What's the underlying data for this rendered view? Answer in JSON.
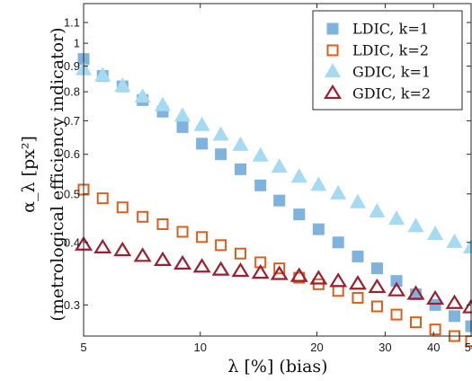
{
  "chart_data": {
    "type": "scatter",
    "x_scale": "log",
    "y_scale": "log",
    "xlim": [
      5,
      50
    ],
    "ylim": [
      0.26,
      1.2
    ],
    "xlabel": "λ [%] (bias)",
    "ylabel_line1": "α_λ [px²]",
    "ylabel_line2": "(metrological efficiency indicator)",
    "x_ticks": [
      {
        "value": 5,
        "label": "5"
      },
      {
        "value": 10,
        "label": "10"
      },
      {
        "value": 20,
        "label": "20"
      },
      {
        "value": 30,
        "label": "30"
      },
      {
        "value": 40,
        "label": "40"
      },
      {
        "value": 50,
        "label": "50"
      }
    ],
    "y_ticks": [
      {
        "value": 0.3,
        "label": "0.3"
      },
      {
        "value": 0.4,
        "label": "0.4"
      },
      {
        "value": 0.5,
        "label": "0.5"
      },
      {
        "value": 0.6,
        "label": "0.6"
      },
      {
        "value": 0.7,
        "label": "0.7"
      },
      {
        "value": 0.8,
        "label": "0.8"
      },
      {
        "value": 0.9,
        "label": "0.9"
      },
      {
        "value": 1.0,
        "label": "1"
      },
      {
        "value": 1.1,
        "label": "1.1"
      }
    ],
    "legend_position": "top-right",
    "x": [
      5.0,
      5.6,
      6.3,
      7.1,
      8.0,
      9.0,
      10.1,
      11.3,
      12.7,
      14.3,
      16.0,
      18.0,
      20.2,
      22.7,
      25.5,
      28.6,
      32.1,
      36.0,
      40.4,
      45.3,
      50.0
    ],
    "series": [
      {
        "name": "LDIC, k=1",
        "marker": "square-filled",
        "color": "#7fb2dd",
        "values": [
          0.93,
          0.86,
          0.82,
          0.77,
          0.73,
          0.68,
          0.63,
          0.6,
          0.56,
          0.52,
          0.485,
          0.455,
          0.425,
          0.4,
          0.375,
          0.355,
          0.335,
          0.315,
          0.3,
          0.285,
          0.272
        ]
      },
      {
        "name": "LDIC, k=2",
        "marker": "square-open",
        "color": "#d95f1c",
        "values": [
          0.51,
          0.49,
          0.47,
          0.45,
          0.435,
          0.42,
          0.41,
          0.395,
          0.38,
          0.365,
          0.355,
          0.34,
          0.33,
          0.32,
          0.31,
          0.298,
          0.287,
          0.277,
          0.268,
          0.26,
          0.254
        ]
      },
      {
        "name": "GDIC, k=1",
        "marker": "triangle-filled",
        "color": "#a6d9f2",
        "values": [
          0.885,
          0.86,
          0.82,
          0.78,
          0.75,
          0.715,
          0.685,
          0.655,
          0.625,
          0.595,
          0.565,
          0.54,
          0.52,
          0.5,
          0.48,
          0.46,
          0.445,
          0.43,
          0.415,
          0.4,
          0.39
        ]
      },
      {
        "name": "GDIC, k=2",
        "marker": "triangle-open",
        "color": "#a01c2e",
        "values": [
          0.395,
          0.39,
          0.385,
          0.375,
          0.368,
          0.362,
          0.357,
          0.352,
          0.35,
          0.347,
          0.345,
          0.342,
          0.338,
          0.334,
          0.33,
          0.325,
          0.32,
          0.315,
          0.308,
          0.302,
          0.296
        ]
      }
    ],
    "grid": false
  }
}
